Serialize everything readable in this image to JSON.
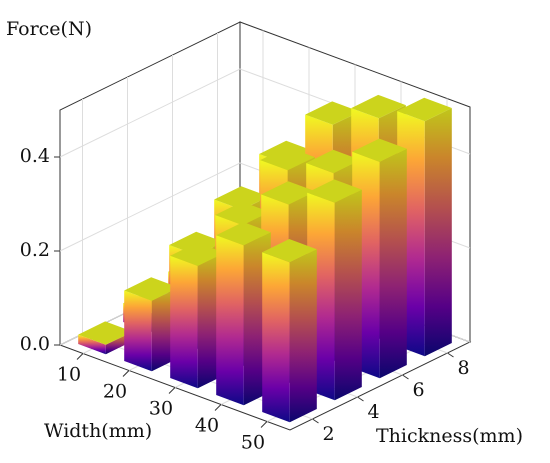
{
  "chart_data": {
    "type": "bar3d",
    "zlabel": "Force(N)",
    "xlabel": "Width(mm)",
    "ylabel": "Thickness(mm)",
    "x_categories": [
      "10",
      "20",
      "30",
      "40",
      "50"
    ],
    "y_categories": [
      "2",
      "4",
      "6",
      "8"
    ],
    "values": [
      [
        0.02,
        0.15,
        0.26,
        0.34,
        0.34
      ],
      [
        0.04,
        0.2,
        0.3,
        0.38,
        0.42
      ],
      [
        0.06,
        0.25,
        0.37,
        0.4,
        0.46
      ],
      [
        0.08,
        0.3,
        0.42,
        0.47,
        0.5
      ]
    ],
    "zlim": [
      0,
      0.5
    ],
    "zticks": [
      {
        "value": 0,
        "label": "0.0"
      },
      {
        "value": 0.2,
        "label": "0.2"
      },
      {
        "value": 0.4,
        "label": "0.4"
      }
    ],
    "colors": [
      "#f0f921",
      "#fca636",
      "#e16462",
      "#b12a90",
      "#6a00a8",
      "#0d0887"
    ],
    "grid": true
  }
}
